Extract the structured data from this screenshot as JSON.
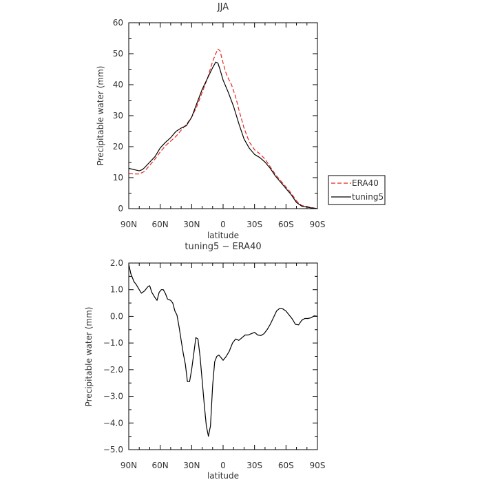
{
  "chart_data": [
    {
      "type": "line",
      "title": "JJA",
      "xlabel": "latitude",
      "ylabel": "Precipitable water (mm)",
      "xlim": [
        90,
        -90
      ],
      "ylim": [
        0,
        60
      ],
      "xtick_values": [
        90,
        60,
        30,
        0,
        -30,
        -60,
        -90
      ],
      "xtick_labels": [
        "90N",
        "60N",
        "30N",
        "0",
        "30S",
        "60S",
        "90S"
      ],
      "ytick_values": [
        0,
        10,
        20,
        30,
        40,
        50,
        60
      ],
      "ytick_labels": [
        "0",
        "10",
        "20",
        "30",
        "40",
        "50",
        "60"
      ],
      "legend_position": "outside-right",
      "series": [
        {
          "name": "ERA40",
          "color": "#e8231a",
          "dash": "dashed",
          "points": [
            [
              90,
              11.3
            ],
            [
              85,
              11.2
            ],
            [
              80,
              11.2
            ],
            [
              75,
              12.0
            ],
            [
              70,
              14.0
            ],
            [
              65,
              16.0
            ],
            [
              60,
              18.3
            ],
            [
              55,
              20.3
            ],
            [
              50,
              21.8
            ],
            [
              45,
              23.3
            ],
            [
              40,
              25.3
            ],
            [
              35,
              27.2
            ],
            [
              30,
              29.5
            ],
            [
              25,
              33.0
            ],
            [
              20,
              37.5
            ],
            [
              15,
              42.0
            ],
            [
              10,
              47.5
            ],
            [
              7,
              50.0
            ],
            [
              5,
              51.5
            ],
            [
              3,
              51.0
            ],
            [
              0,
              47.0
            ],
            [
              -3,
              43.5
            ],
            [
              -5,
              42.0
            ],
            [
              -8,
              40.0
            ],
            [
              -12,
              36.0
            ],
            [
              -15,
              32.0
            ],
            [
              -20,
              26.0
            ],
            [
              -25,
              21.5
            ],
            [
              -30,
              19.0
            ],
            [
              -35,
              17.7
            ],
            [
              -40,
              16.0
            ],
            [
              -45,
              13.5
            ],
            [
              -50,
              11.0
            ],
            [
              -55,
              9.0
            ],
            [
              -60,
              7.0
            ],
            [
              -65,
              5.0
            ],
            [
              -70,
              2.5
            ],
            [
              -75,
              1.0
            ],
            [
              -80,
              0.7
            ],
            [
              -85,
              0.3
            ],
            [
              -90,
              0.0
            ]
          ]
        },
        {
          "name": "tuning5",
          "color": "#000000",
          "dash": "solid",
          "points": [
            [
              90,
              13.0
            ],
            [
              85,
              12.6
            ],
            [
              80,
              12.2
            ],
            [
              77,
              12.6
            ],
            [
              75,
              13.2
            ],
            [
              70,
              15.0
            ],
            [
              65,
              16.8
            ],
            [
              60,
              19.6
            ],
            [
              55,
              21.4
            ],
            [
              50,
              22.9
            ],
            [
              45,
              24.9
            ],
            [
              40,
              26.0
            ],
            [
              35,
              26.8
            ],
            [
              30,
              29.5
            ],
            [
              25,
              34.0
            ],
            [
              20,
              38.5
            ],
            [
              15,
              42.0
            ],
            [
              10,
              45.5
            ],
            [
              7,
              47.3
            ],
            [
              5,
              47.0
            ],
            [
              3,
              45.0
            ],
            [
              0,
              41.5
            ],
            [
              -5,
              37.5
            ],
            [
              -10,
              33.0
            ],
            [
              -15,
              27.5
            ],
            [
              -20,
              22.5
            ],
            [
              -25,
              19.5
            ],
            [
              -30,
              17.5
            ],
            [
              -35,
              16.5
            ],
            [
              -40,
              15.0
            ],
            [
              -45,
              13.0
            ],
            [
              -50,
              10.5
            ],
            [
              -55,
              8.5
            ],
            [
              -60,
              6.5
            ],
            [
              -65,
              4.5
            ],
            [
              -70,
              2.0
            ],
            [
              -75,
              0.8
            ],
            [
              -80,
              0.5
            ],
            [
              -85,
              0.2
            ],
            [
              -90,
              0.0
            ]
          ]
        }
      ]
    },
    {
      "type": "line",
      "title": "tuning5 − ERA40",
      "xlabel": "latitude",
      "ylabel": "Precipitable water (mm)",
      "xlim": [
        90,
        -90
      ],
      "ylim": [
        -5,
        2
      ],
      "xtick_values": [
        90,
        60,
        30,
        0,
        -30,
        -60,
        -90
      ],
      "xtick_labels": [
        "90N",
        "60N",
        "30N",
        "0",
        "30S",
        "60S",
        "90S"
      ],
      "ytick_values": [
        2,
        1,
        0,
        -1,
        -2,
        -3,
        -4,
        -5
      ],
      "ytick_labels": [
        "2.0",
        "1.0",
        "0.0",
        "−1.0",
        "−2.0",
        "−3.0",
        "−4.0",
        "−5.0"
      ],
      "series": [
        {
          "color": "#000000",
          "dash": "solid",
          "points": [
            [
              90,
              1.95
            ],
            [
              88,
              1.6
            ],
            [
              85,
              1.3
            ],
            [
              83,
              1.2
            ],
            [
              80,
              1.0
            ],
            [
              78,
              0.87
            ],
            [
              75,
              0.95
            ],
            [
              72,
              1.1
            ],
            [
              70,
              1.15
            ],
            [
              68,
              0.9
            ],
            [
              65,
              0.7
            ],
            [
              63,
              0.6
            ],
            [
              61,
              0.9
            ],
            [
              59,
              1.0
            ],
            [
              57,
              1.0
            ],
            [
              55,
              0.85
            ],
            [
              53,
              0.65
            ],
            [
              50,
              0.6
            ],
            [
              48,
              0.5
            ],
            [
              46,
              0.2
            ],
            [
              44,
              0.05
            ],
            [
              42,
              -0.4
            ],
            [
              40,
              -0.9
            ],
            [
              38,
              -1.4
            ],
            [
              36,
              -1.8
            ],
            [
              34,
              -2.45
            ],
            [
              32,
              -2.45
            ],
            [
              30,
              -2.0
            ],
            [
              28,
              -1.4
            ],
            [
              26,
              -0.8
            ],
            [
              24,
              -0.85
            ],
            [
              22,
              -1.5
            ],
            [
              20,
              -2.4
            ],
            [
              18,
              -3.3
            ],
            [
              16,
              -4.1
            ],
            [
              14,
              -4.5
            ],
            [
              12,
              -4.1
            ],
            [
              10,
              -2.6
            ],
            [
              8,
              -1.7
            ],
            [
              6,
              -1.5
            ],
            [
              4,
              -1.45
            ],
            [
              2,
              -1.55
            ],
            [
              0,
              -1.65
            ],
            [
              -3,
              -1.5
            ],
            [
              -6,
              -1.3
            ],
            [
              -9,
              -1.0
            ],
            [
              -12,
              -0.85
            ],
            [
              -15,
              -0.9
            ],
            [
              -18,
              -0.8
            ],
            [
              -21,
              -0.7
            ],
            [
              -24,
              -0.7
            ],
            [
              -27,
              -0.65
            ],
            [
              -30,
              -0.6
            ],
            [
              -33,
              -0.7
            ],
            [
              -36,
              -0.72
            ],
            [
              -39,
              -0.65
            ],
            [
              -42,
              -0.5
            ],
            [
              -45,
              -0.3
            ],
            [
              -48,
              -0.05
            ],
            [
              -51,
              0.2
            ],
            [
              -54,
              0.3
            ],
            [
              -57,
              0.28
            ],
            [
              -60,
              0.2
            ],
            [
              -63,
              0.05
            ],
            [
              -66,
              -0.1
            ],
            [
              -69,
              -0.3
            ],
            [
              -72,
              -0.32
            ],
            [
              -75,
              -0.15
            ],
            [
              -78,
              -0.08
            ],
            [
              -81,
              -0.08
            ],
            [
              -84,
              -0.05
            ],
            [
              -87,
              0.02
            ],
            [
              -90,
              0.0
            ]
          ]
        }
      ]
    }
  ]
}
